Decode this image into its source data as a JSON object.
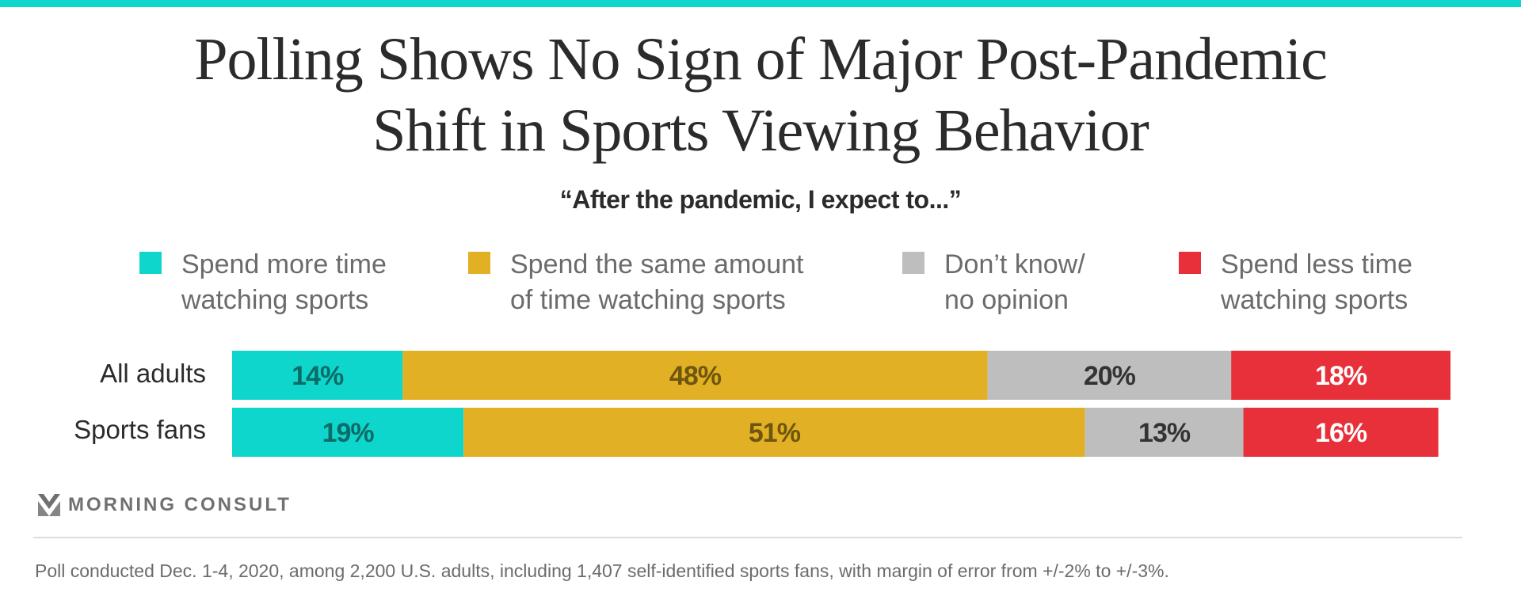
{
  "brand": {
    "accent_color": "#0fd6cc",
    "logo_text": "MORNING CONSULT",
    "logo_icon": "morning-consult-chevron-icon"
  },
  "title_lines": [
    "Polling Shows No Sign of Major Post-Pandemic",
    "Shift in Sports Viewing Behavior"
  ],
  "subtitle": "“After the pandemic, I expect to...”",
  "footnote": "Poll conducted Dec. 1-4, 2020, among 2,200 U.S. adults, including 1,407 self-identified sports fans, with margin of error from +/-2% to +/-3%.",
  "chart_data": {
    "type": "bar",
    "orientation": "horizontal",
    "stacked": true,
    "title": "Polling Shows No Sign of Major Post-Pandemic Shift in Sports Viewing Behavior",
    "subtitle": "“After the pandemic, I expect to...”",
    "xlabel": "",
    "ylabel": "",
    "xlim": [
      0,
      100
    ],
    "unit": "%",
    "grid": false,
    "legend_position": "top",
    "categories": [
      "All adults",
      "Sports fans"
    ],
    "series": [
      {
        "name": "Spend more time watching sports",
        "legend_lines": [
          "Spend more time",
          "watching sports"
        ],
        "color": "#0fd6cc",
        "label_color": "#0b6b66",
        "values": [
          14,
          19
        ]
      },
      {
        "name": "Spend the same amount of time watching sports",
        "legend_lines": [
          "Spend the same amount",
          "of time watching sports"
        ],
        "color": "#e1b024",
        "label_color": "#6e560e",
        "values": [
          48,
          51
        ]
      },
      {
        "name": "Don’t know/ no opinion",
        "legend_lines": [
          "Don’t know/",
          "no opinion"
        ],
        "color": "#bebebe",
        "label_color": "#333333",
        "values": [
          20,
          13
        ]
      },
      {
        "name": "Spend less time watching sports",
        "legend_lines": [
          "Spend less time",
          "watching sports"
        ],
        "color": "#e8303a",
        "label_color": "#ffffff",
        "values": [
          18,
          16
        ]
      }
    ],
    "data_labels": [
      [
        "14%",
        "48%",
        "20%",
        "18%"
      ],
      [
        "19%",
        "51%",
        "13%",
        "16%"
      ]
    ]
  }
}
